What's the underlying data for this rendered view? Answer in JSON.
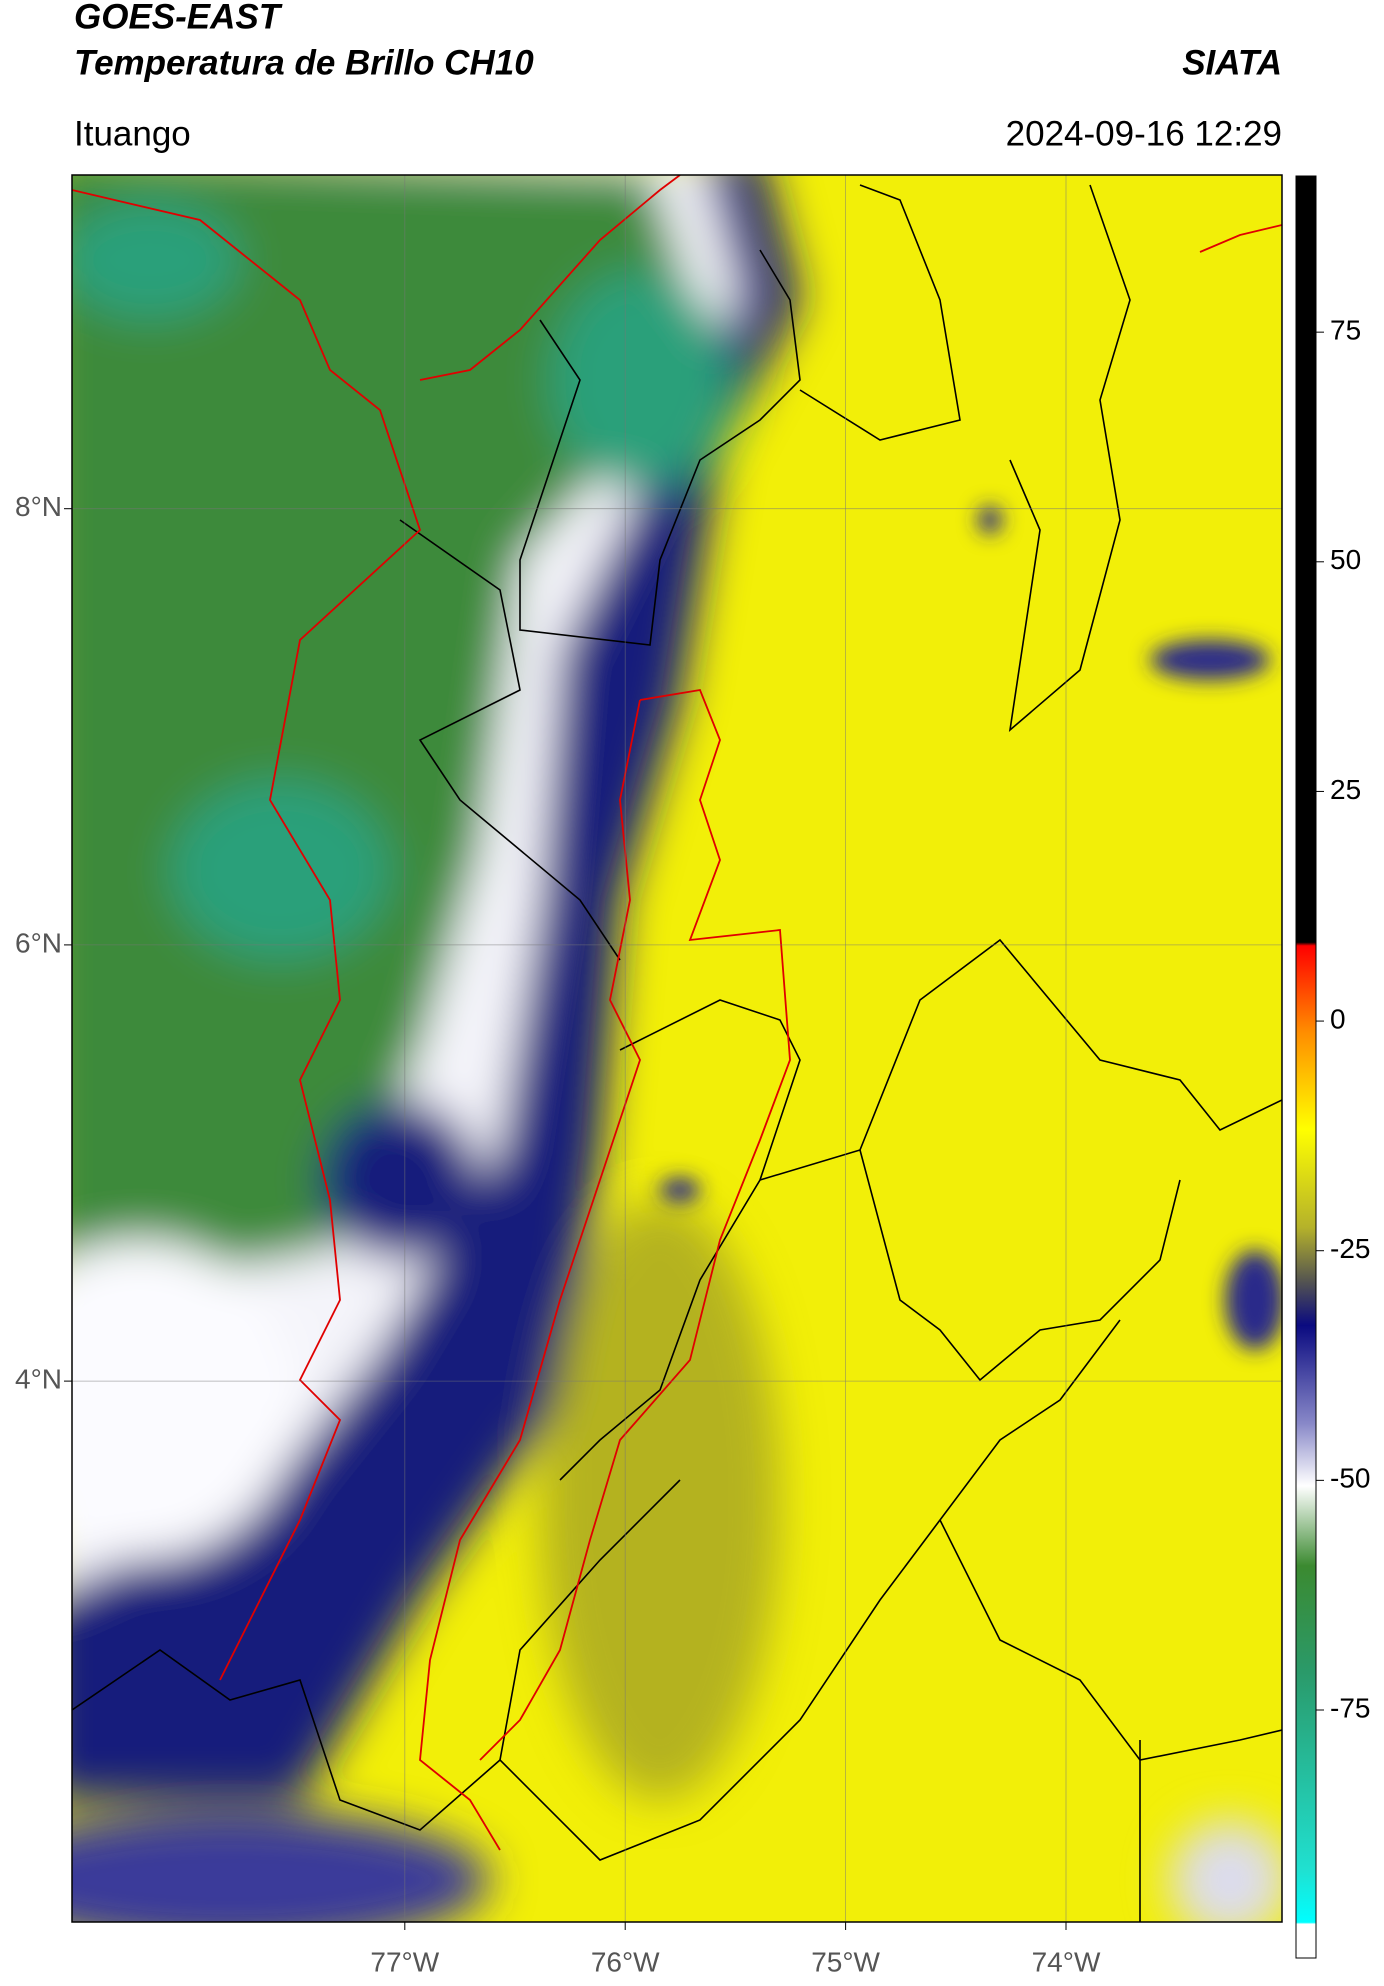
{
  "header": {
    "satellite": "GOES-EAST",
    "product": "Temperatura de Brillo CH10",
    "source": "SIATA",
    "location": "Ituango",
    "timestamp": "2024-09-16 12:29"
  },
  "map": {
    "lonlim": [
      -78.51,
      -73.02
    ],
    "latlim": [
      1.52,
      9.53
    ],
    "lat_ticks": [
      {
        "value": 8,
        "label": "8°N"
      },
      {
        "value": 6,
        "label": "6°N"
      },
      {
        "value": 4,
        "label": "4°N"
      }
    ],
    "lon_ticks": [
      {
        "value": -77,
        "label": "77°W"
      },
      {
        "value": -76,
        "label": "76°W"
      },
      {
        "value": -75,
        "label": "75°W"
      },
      {
        "value": -74,
        "label": "74°W"
      }
    ]
  },
  "colorbar": {
    "lim": [
      -102,
      92
    ],
    "ticks": [
      75,
      50,
      25,
      0,
      -25,
      -50,
      -75
    ]
  }
}
